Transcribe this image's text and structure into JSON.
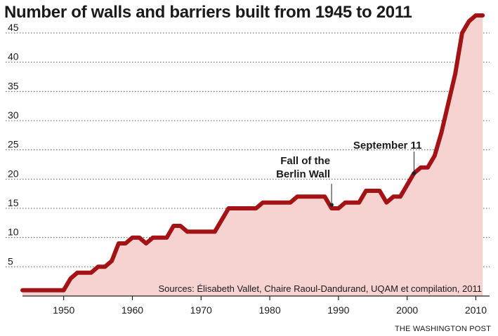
{
  "chart_data": {
    "type": "area",
    "title": "Number of walls and barriers built from 1945 to 2011",
    "xlabel": "",
    "ylabel": "",
    "xlim": [
      1944,
      2012
    ],
    "ylim": [
      0,
      48
    ],
    "x_ticks": [
      1950,
      1960,
      1970,
      1980,
      1990,
      2000,
      2010
    ],
    "y_ticks": [
      5,
      10,
      15,
      20,
      25,
      30,
      35,
      40,
      45
    ],
    "grid": "horizontal dotted",
    "series": [
      {
        "x": [
          1944,
          1945,
          1946,
          1947,
          1948,
          1949,
          1950,
          1951,
          1952,
          1953,
          1954,
          1955,
          1956,
          1957,
          1958,
          1959,
          1960,
          1961,
          1962,
          1963,
          1964,
          1965,
          1966,
          1967,
          1968,
          1969,
          1970,
          1971,
          1972,
          1973,
          1974,
          1975,
          1976,
          1977,
          1978,
          1979,
          1980,
          1981,
          1982,
          1983,
          1984,
          1985,
          1986,
          1987,
          1988,
          1989,
          1990,
          1991,
          1992,
          1993,
          1994,
          1995,
          1996,
          1997,
          1998,
          1999,
          2000,
          2001,
          2002,
          2003,
          2004,
          2005,
          2006,
          2007,
          2008,
          2009,
          2010,
          2011
        ],
        "y": [
          1,
          1,
          1,
          1,
          1,
          1,
          1,
          3,
          4,
          4,
          4,
          5,
          5,
          6,
          9,
          9,
          10,
          10,
          9,
          10,
          10,
          10,
          12,
          12,
          11,
          11,
          11,
          11,
          11,
          13,
          15,
          15,
          15,
          15,
          15,
          16,
          16,
          16,
          16,
          16,
          17,
          17,
          17,
          17,
          17,
          15,
          15,
          16,
          16,
          16,
          18,
          18,
          18,
          16,
          17,
          17,
          19,
          21,
          22,
          22,
          24,
          28,
          33,
          38,
          45,
          47,
          48,
          48
        ]
      }
    ],
    "annotations": [
      {
        "text_lines": [
          "Fall of the",
          "Berlin Wall"
        ],
        "x": 1989,
        "y": 15.6
      },
      {
        "text_lines": [
          "September 11"
        ],
        "x": 2001,
        "y": 21
      }
    ],
    "source_note": "Sources: Élisabeth Vallet, Chaire Raoul-Dandurand, UQAM et compilation, 2011",
    "credit": "THE WASHINGTON POST",
    "colors": {
      "line": "#a31214",
      "fill": "#f6d3d0",
      "grid": "#555555",
      "text": "#1a1a1a"
    }
  }
}
